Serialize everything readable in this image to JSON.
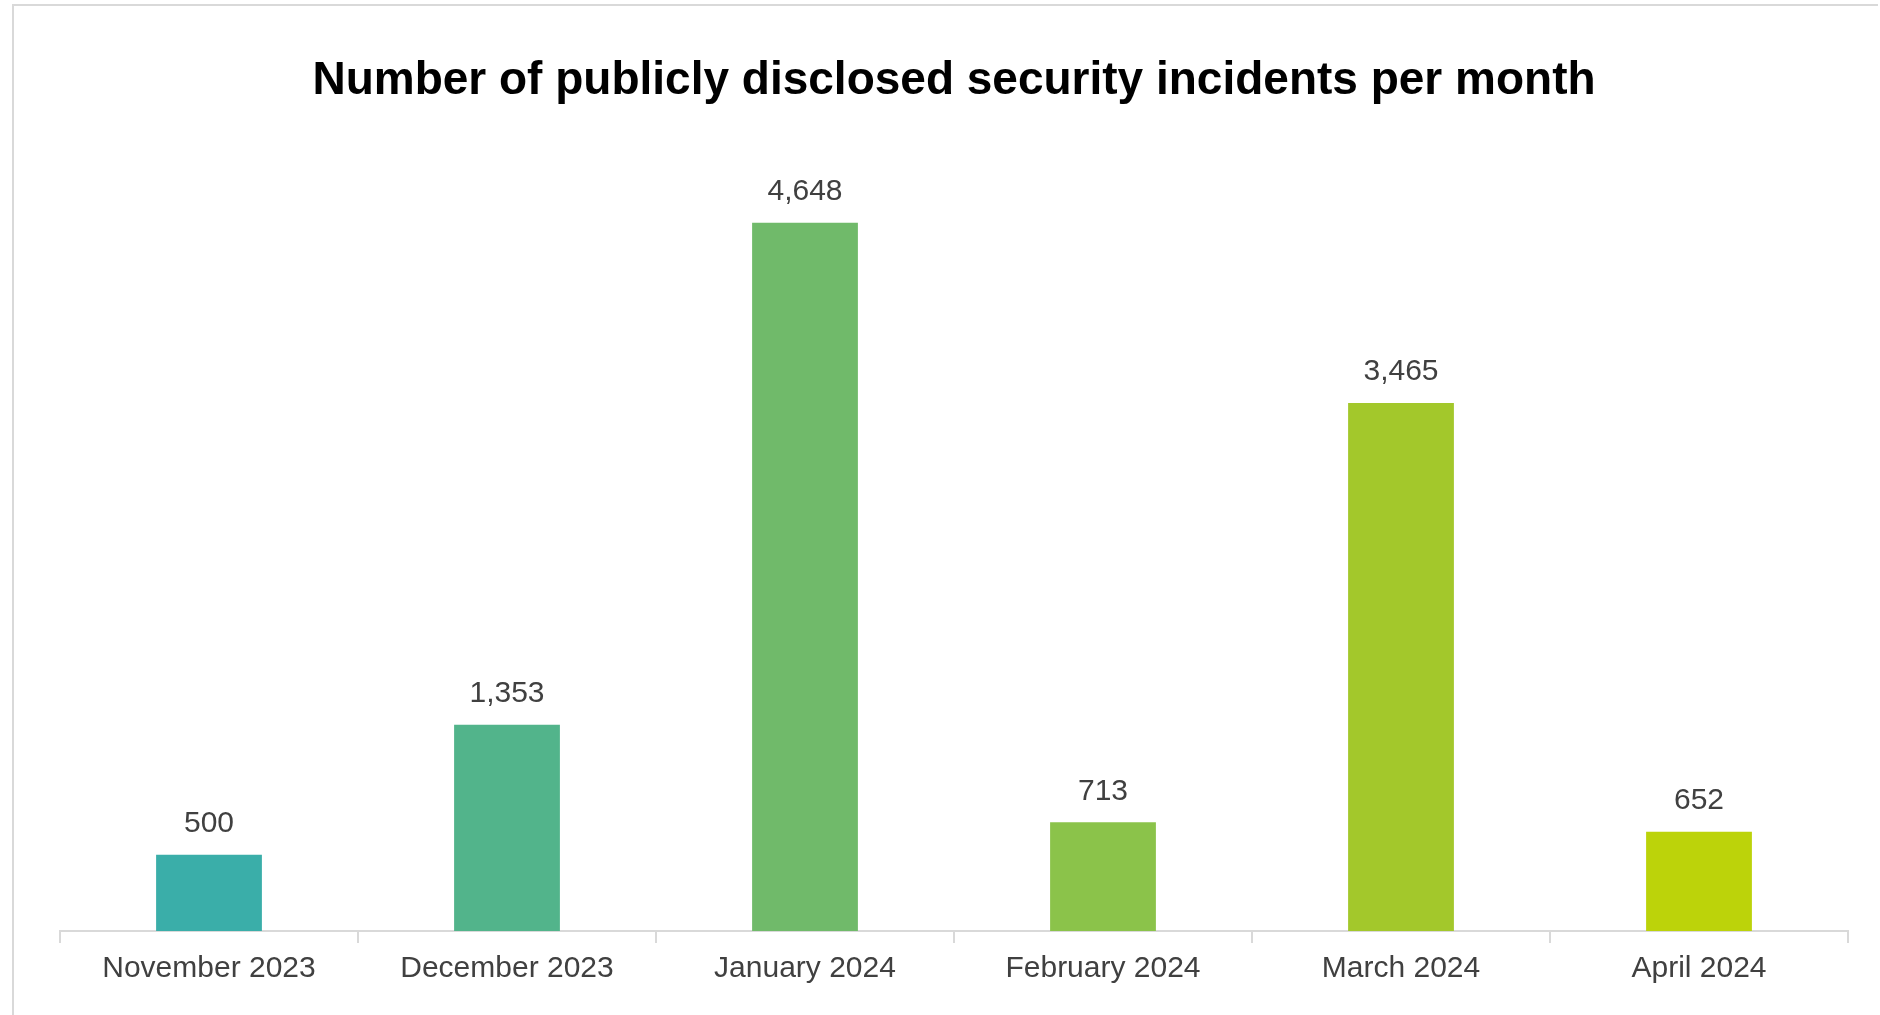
{
  "chart_data": {
    "type": "bar",
    "title": "Number of publicly disclosed security incidents per month",
    "categories": [
      "November 2023",
      "December 2023",
      "January 2024",
      "February 2024",
      "March 2024",
      "April 2024"
    ],
    "values": [
      500,
      1353,
      4648,
      713,
      3465,
      652
    ],
    "colors": [
      "#3aaea9",
      "#52b48b",
      "#70ba6a",
      "#8bc34a",
      "#a3c82b",
      "#bcd30a"
    ],
    "value_labels": [
      "500",
      "1,353",
      "4,648",
      "713",
      "3,465",
      "652"
    ],
    "grid": false,
    "legend": false
  }
}
